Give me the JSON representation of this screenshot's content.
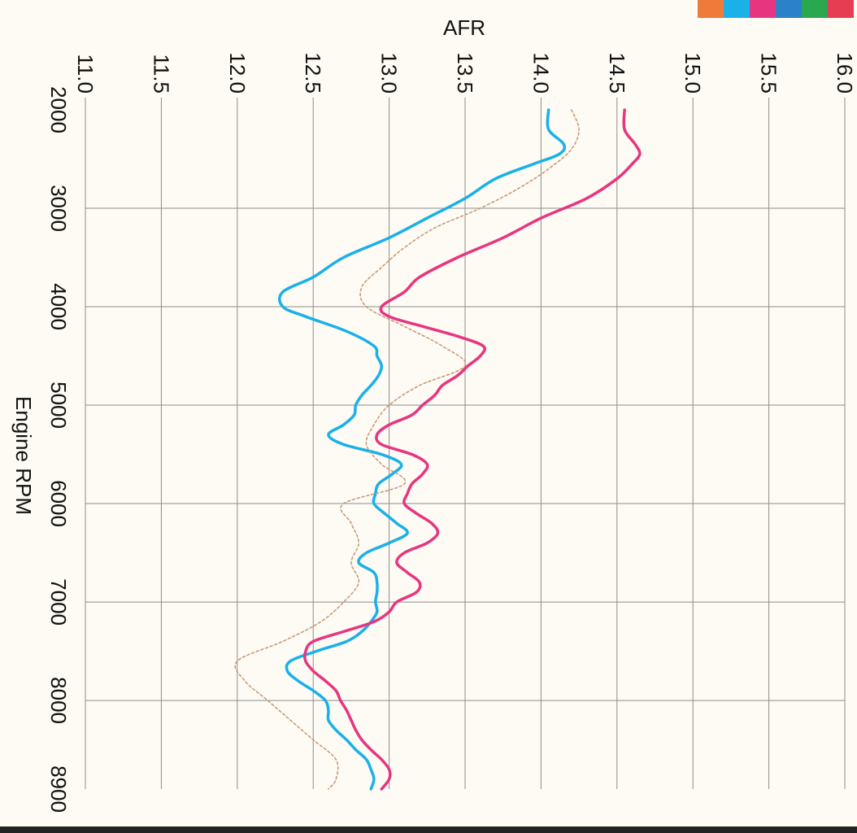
{
  "chart_data": {
    "type": "line",
    "title": "",
    "ylabel": "AFR",
    "xlabel": "Engine RPM",
    "x_ticks": [
      2000,
      3000,
      4000,
      5000,
      6000,
      7000,
      8000,
      8900
    ],
    "x_tick_labels": [
      "2000",
      "3000",
      "4000",
      "5000",
      "6000",
      "7000",
      "8000",
      "8900"
    ],
    "y_ticks": [
      11.0,
      11.5,
      12.0,
      12.5,
      13.0,
      13.5,
      14.0,
      14.5,
      15.0,
      15.5,
      16.0
    ],
    "y_tick_labels": [
      "11.0",
      "11.5",
      "12.0",
      "12.5",
      "13.0",
      "13.5",
      "14.0",
      "14.5",
      "15.0",
      "15.5",
      "16.0"
    ],
    "xlim": [
      2000,
      8900
    ],
    "ylim": [
      11.0,
      16.0
    ],
    "grid": true,
    "legend_swatches": [
      "#f07a3a",
      "#1ab0e8",
      "#e7357f",
      "#2a82c8",
      "#2aa84f",
      "#e63d52"
    ],
    "series": [
      {
        "color": "#1ab0e8",
        "style": "solid",
        "x": [
          2000,
          2200,
          2350,
          2450,
          2550,
          2700,
          2900,
          3100,
          3300,
          3500,
          3700,
          3850,
          4000,
          4100,
          4250,
          4400,
          4500,
          4600,
          4700,
          4800,
          4900,
          5000,
          5100,
          5200,
          5300,
          5400,
          5500,
          5600,
          5700,
          5800,
          5900,
          6000,
          6100,
          6200,
          6300,
          6400,
          6500,
          6600,
          6700,
          6800,
          6900,
          7000,
          7100,
          7200,
          7300,
          7400,
          7500,
          7600,
          7700,
          7800,
          7900,
          8000,
          8100,
          8200,
          8300,
          8400,
          8500,
          8600,
          8700,
          8800,
          8900
        ],
        "y": [
          14.05,
          14.05,
          14.15,
          14.12,
          13.95,
          13.7,
          13.5,
          13.25,
          13.0,
          12.7,
          12.5,
          12.3,
          12.3,
          12.45,
          12.72,
          12.9,
          12.92,
          12.95,
          12.93,
          12.88,
          12.82,
          12.78,
          12.77,
          12.7,
          12.6,
          12.7,
          12.95,
          13.08,
          13.02,
          12.93,
          12.91,
          12.9,
          12.97,
          13.05,
          13.12,
          13.0,
          12.85,
          12.8,
          12.9,
          12.92,
          12.92,
          12.91,
          12.92,
          12.88,
          12.82,
          12.72,
          12.52,
          12.35,
          12.33,
          12.4,
          12.5,
          12.58,
          12.6,
          12.6,
          12.65,
          12.72,
          12.78,
          12.85,
          12.88,
          12.9,
          12.88
        ]
      },
      {
        "color": "#e7357f",
        "style": "solid",
        "x": [
          2000,
          2200,
          2350,
          2450,
          2550,
          2700,
          2900,
          3100,
          3300,
          3500,
          3700,
          3850,
          4000,
          4100,
          4200,
          4300,
          4400,
          4500,
          4600,
          4700,
          4800,
          4900,
          5000,
          5100,
          5200,
          5300,
          5400,
          5500,
          5600,
          5700,
          5800,
          5900,
          6000,
          6100,
          6200,
          6300,
          6400,
          6500,
          6600,
          6700,
          6800,
          6900,
          7000,
          7100,
          7200,
          7300,
          7400,
          7500,
          7600,
          7700,
          7800,
          7900,
          8000,
          8100,
          8200,
          8300,
          8400,
          8500,
          8600,
          8700,
          8800,
          8900
        ],
        "y": [
          14.55,
          14.55,
          14.62,
          14.65,
          14.6,
          14.5,
          14.3,
          14.0,
          13.75,
          13.45,
          13.2,
          13.1,
          12.95,
          13.0,
          13.22,
          13.45,
          13.62,
          13.6,
          13.52,
          13.45,
          13.35,
          13.3,
          13.22,
          13.15,
          13.0,
          12.92,
          12.95,
          13.15,
          13.25,
          13.22,
          13.15,
          13.12,
          13.1,
          13.18,
          13.28,
          13.32,
          13.25,
          13.1,
          13.05,
          13.12,
          13.2,
          13.18,
          13.05,
          13.0,
          12.9,
          12.7,
          12.5,
          12.45,
          12.45,
          12.5,
          12.58,
          12.65,
          12.68,
          12.72,
          12.75,
          12.78,
          12.82,
          12.88,
          12.95,
          13.0,
          13.0,
          12.95
        ]
      },
      {
        "color": "#c99a7a",
        "style": "dotted",
        "x": [
          2000,
          2200,
          2400,
          2600,
          2800,
          3000,
          3200,
          3400,
          3600,
          3800,
          4000,
          4200,
          4400,
          4600,
          4800,
          5000,
          5200,
          5400,
          5600,
          5800,
          6000,
          6200,
          6400,
          6600,
          6800,
          7000,
          7200,
          7400,
          7600,
          7800,
          8000,
          8200,
          8400,
          8600,
          8800,
          8900
        ],
        "y": [
          14.2,
          14.25,
          14.2,
          14.05,
          13.85,
          13.6,
          13.3,
          13.1,
          12.95,
          12.82,
          12.85,
          13.1,
          13.35,
          13.5,
          13.2,
          13.0,
          12.9,
          12.85,
          12.95,
          13.1,
          12.7,
          12.75,
          12.8,
          12.75,
          12.8,
          12.7,
          12.55,
          12.3,
          12.0,
          12.05,
          12.2,
          12.35,
          12.5,
          12.65,
          12.65,
          12.6
        ]
      }
    ]
  }
}
